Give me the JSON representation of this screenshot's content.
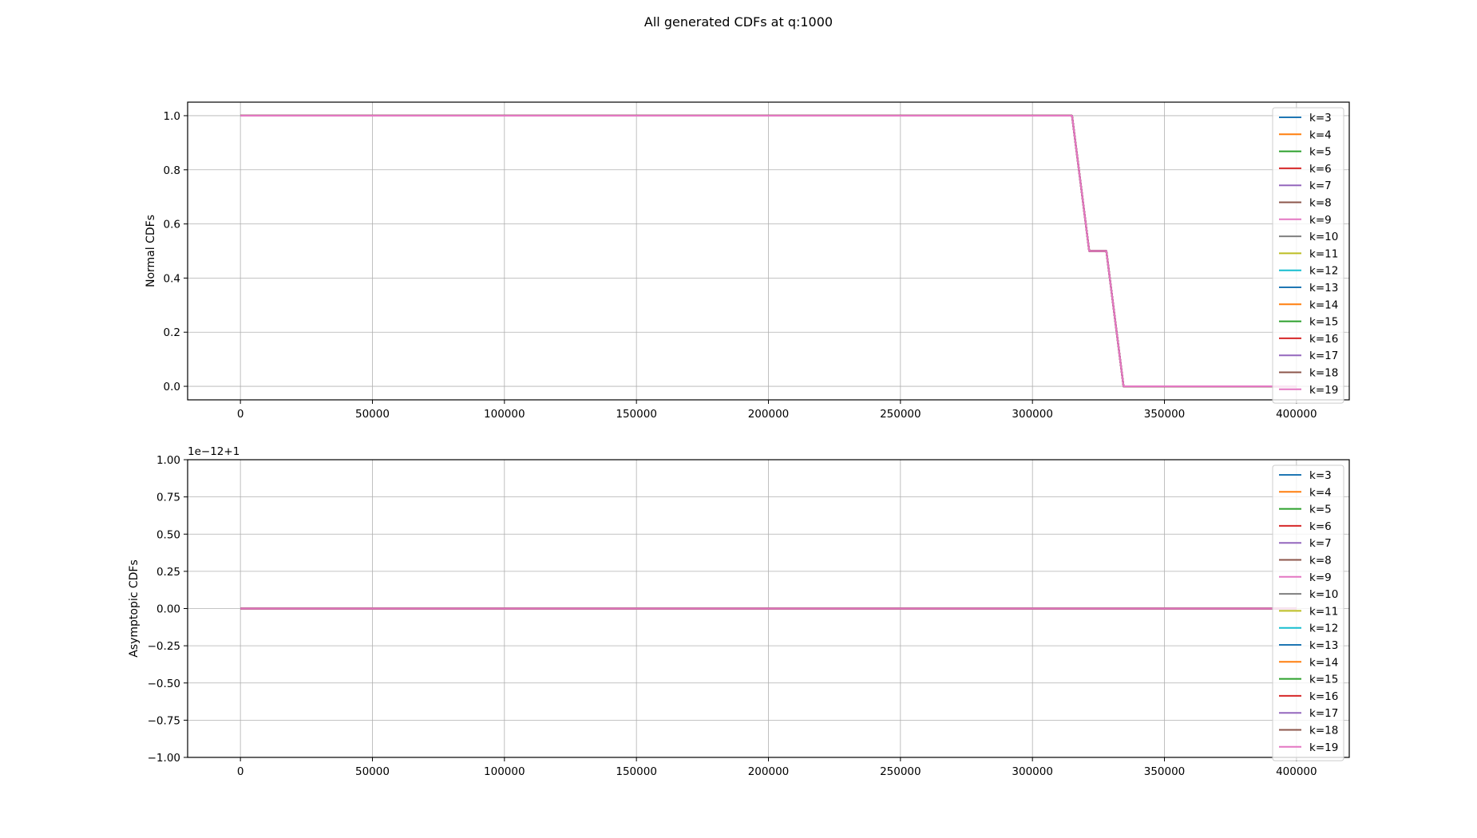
{
  "figure": {
    "suptitle": "All generated CDFs at q:1000"
  },
  "colors": {
    "grid": "#b0b0b0",
    "axes": "#000000",
    "legend_border": "#cccccc"
  },
  "chart_data": [
    {
      "type": "line",
      "ylabel": "Normal CDFs",
      "xlim": [
        -20000,
        420000
      ],
      "ylim": [
        -0.05,
        1.05
      ],
      "xticks": [
        0,
        50000,
        100000,
        150000,
        200000,
        250000,
        300000,
        350000,
        400000
      ],
      "xtick_labels": [
        "0",
        "50000",
        "100000",
        "150000",
        "200000",
        "250000",
        "300000",
        "350000",
        "400000"
      ],
      "yticks": [
        0.0,
        0.2,
        0.4,
        0.6,
        0.8,
        1.0
      ],
      "ytick_labels": [
        "0.0",
        "0.2",
        "0.4",
        "0.6",
        "0.8",
        "1.0"
      ],
      "grid": true,
      "legend_position": "top-right",
      "series": [
        {
          "name": "k=3",
          "color": "#1f77b4",
          "x": [
            0,
            315000,
            321500,
            328000,
            334500,
            400000
          ],
          "y": [
            1,
            1,
            0.5,
            0.5,
            0,
            0
          ]
        },
        {
          "name": "k=4",
          "color": "#ff7f0e",
          "x": [
            0,
            315000,
            321500,
            328000,
            334500,
            400000
          ],
          "y": [
            1,
            1,
            0.5,
            0.5,
            0,
            0
          ]
        },
        {
          "name": "k=5",
          "color": "#2ca02c",
          "x": [
            0,
            315000,
            321500,
            328000,
            334500,
            400000
          ],
          "y": [
            1,
            1,
            0.5,
            0.5,
            0,
            0
          ]
        },
        {
          "name": "k=6",
          "color": "#d62728",
          "x": [
            0,
            315000,
            321500,
            328000,
            334500,
            400000
          ],
          "y": [
            1,
            1,
            0.5,
            0.5,
            0,
            0
          ]
        },
        {
          "name": "k=7",
          "color": "#9467bd",
          "x": [
            0,
            315000,
            321500,
            328000,
            334500,
            400000
          ],
          "y": [
            1,
            1,
            0.5,
            0.5,
            0,
            0
          ]
        },
        {
          "name": "k=8",
          "color": "#8c564b",
          "x": [
            0,
            315000,
            321500,
            328000,
            334500,
            400000
          ],
          "y": [
            1,
            1,
            0.5,
            0.5,
            0,
            0
          ]
        },
        {
          "name": "k=9",
          "color": "#e377c2",
          "x": [
            0,
            315000,
            321500,
            328000,
            334500,
            400000
          ],
          "y": [
            1,
            1,
            0.5,
            0.5,
            0,
            0
          ]
        },
        {
          "name": "k=10",
          "color": "#7f7f7f",
          "x": [
            0,
            315000,
            321500,
            328000,
            334500,
            400000
          ],
          "y": [
            1,
            1,
            0.5,
            0.5,
            0,
            0
          ]
        },
        {
          "name": "k=11",
          "color": "#bcbd22",
          "x": [
            0,
            315000,
            321500,
            328000,
            334500,
            400000
          ],
          "y": [
            1,
            1,
            0.5,
            0.5,
            0,
            0
          ]
        },
        {
          "name": "k=12",
          "color": "#17becf",
          "x": [
            0,
            315000,
            321500,
            328000,
            334500,
            400000
          ],
          "y": [
            1,
            1,
            0.5,
            0.5,
            0,
            0
          ]
        },
        {
          "name": "k=13",
          "color": "#1f77b4",
          "x": [
            0,
            315000,
            321500,
            328000,
            334500,
            400000
          ],
          "y": [
            1,
            1,
            0.5,
            0.5,
            0,
            0
          ]
        },
        {
          "name": "k=14",
          "color": "#ff7f0e",
          "x": [
            0,
            315000,
            321500,
            328000,
            334500,
            400000
          ],
          "y": [
            1,
            1,
            0.5,
            0.5,
            0,
            0
          ]
        },
        {
          "name": "k=15",
          "color": "#2ca02c",
          "x": [
            0,
            315000,
            321500,
            328000,
            334500,
            400000
          ],
          "y": [
            1,
            1,
            0.5,
            0.5,
            0,
            0
          ]
        },
        {
          "name": "k=16",
          "color": "#d62728",
          "x": [
            0,
            315000,
            321500,
            328000,
            334500,
            400000
          ],
          "y": [
            1,
            1,
            0.5,
            0.5,
            0,
            0
          ]
        },
        {
          "name": "k=17",
          "color": "#9467bd",
          "x": [
            0,
            315000,
            321500,
            328000,
            334500,
            400000
          ],
          "y": [
            1,
            1,
            0.5,
            0.5,
            0,
            0
          ]
        },
        {
          "name": "k=18",
          "color": "#8c564b",
          "x": [
            0,
            315000,
            321500,
            328000,
            334500,
            400000
          ],
          "y": [
            1,
            1,
            0.5,
            0.5,
            0,
            0
          ]
        },
        {
          "name": "k=19",
          "color": "#e377c2",
          "x": [
            0,
            315000,
            321500,
            328000,
            334500,
            400000
          ],
          "y": [
            1,
            1,
            0.5,
            0.5,
            0,
            0
          ]
        }
      ]
    },
    {
      "type": "line",
      "ylabel": "Asymptopic CDFs",
      "offset_text": "1e−12+1",
      "xlim": [
        -20000,
        420000
      ],
      "ylim": [
        -1.0,
        1.0
      ],
      "xticks": [
        0,
        50000,
        100000,
        150000,
        200000,
        250000,
        300000,
        350000,
        400000
      ],
      "xtick_labels": [
        "0",
        "50000",
        "100000",
        "150000",
        "200000",
        "250000",
        "300000",
        "350000",
        "400000"
      ],
      "yticks": [
        -1.0,
        -0.75,
        -0.5,
        -0.25,
        0.0,
        0.25,
        0.5,
        0.75,
        1.0
      ],
      "ytick_labels": [
        "−1.00",
        "−0.75",
        "−0.50",
        "−0.25",
        "0.00",
        "0.25",
        "0.50",
        "0.75",
        "1.00"
      ],
      "grid": true,
      "legend_position": "top-right",
      "series": [
        {
          "name": "k=3",
          "color": "#1f77b4",
          "x": [
            0,
            400000
          ],
          "y": [
            0,
            0
          ]
        },
        {
          "name": "k=4",
          "color": "#ff7f0e",
          "x": [
            0,
            400000
          ],
          "y": [
            0,
            0
          ]
        },
        {
          "name": "k=5",
          "color": "#2ca02c",
          "x": [
            0,
            400000
          ],
          "y": [
            0,
            0
          ]
        },
        {
          "name": "k=6",
          "color": "#d62728",
          "x": [
            0,
            400000
          ],
          "y": [
            0,
            0
          ]
        },
        {
          "name": "k=7",
          "color": "#9467bd",
          "x": [
            0,
            400000
          ],
          "y": [
            0,
            0
          ]
        },
        {
          "name": "k=8",
          "color": "#8c564b",
          "x": [
            0,
            400000
          ],
          "y": [
            0,
            0
          ]
        },
        {
          "name": "k=9",
          "color": "#e377c2",
          "x": [
            0,
            400000
          ],
          "y": [
            0,
            0
          ]
        },
        {
          "name": "k=10",
          "color": "#7f7f7f",
          "x": [
            0,
            400000
          ],
          "y": [
            0,
            0
          ]
        },
        {
          "name": "k=11",
          "color": "#bcbd22",
          "x": [
            0,
            400000
          ],
          "y": [
            0,
            0
          ]
        },
        {
          "name": "k=12",
          "color": "#17becf",
          "x": [
            0,
            400000
          ],
          "y": [
            0,
            0
          ]
        },
        {
          "name": "k=13",
          "color": "#1f77b4",
          "x": [
            0,
            400000
          ],
          "y": [
            0,
            0
          ]
        },
        {
          "name": "k=14",
          "color": "#ff7f0e",
          "x": [
            0,
            400000
          ],
          "y": [
            0,
            0
          ]
        },
        {
          "name": "k=15",
          "color": "#2ca02c",
          "x": [
            0,
            400000
          ],
          "y": [
            0,
            0
          ]
        },
        {
          "name": "k=16",
          "color": "#d62728",
          "x": [
            0,
            400000
          ],
          "y": [
            0,
            0
          ]
        },
        {
          "name": "k=17",
          "color": "#9467bd",
          "x": [
            0,
            400000
          ],
          "y": [
            0,
            0
          ]
        },
        {
          "name": "k=18",
          "color": "#8c564b",
          "x": [
            0,
            400000
          ],
          "y": [
            0,
            0
          ]
        },
        {
          "name": "k=19",
          "color": "#e377c2",
          "x": [
            0,
            400000
          ],
          "y": [
            0,
            0
          ]
        }
      ]
    }
  ]
}
